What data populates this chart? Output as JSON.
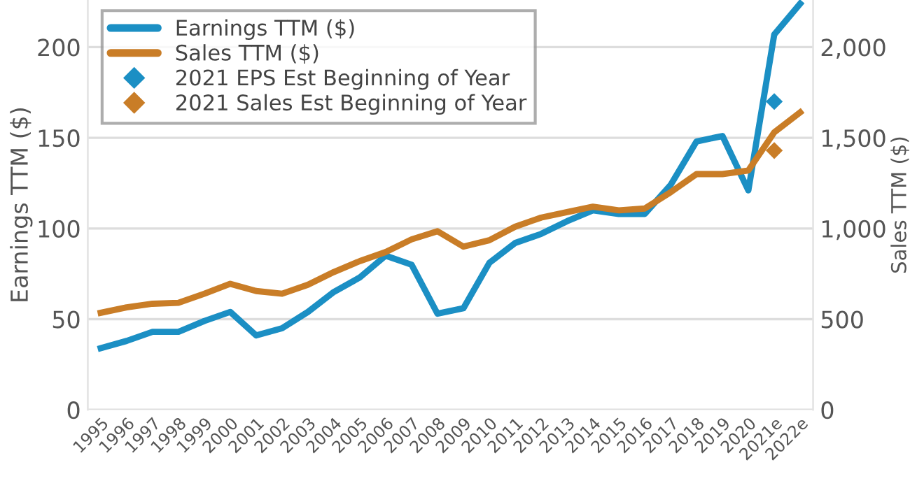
{
  "chart_data": {
    "type": "line",
    "ylabel": "Earnings TTM ($)",
    "y2label": "Sales TTM ($)",
    "categories": [
      "1995",
      "1996",
      "1997",
      "1998",
      "1999",
      "2000",
      "2001",
      "2002",
      "2003",
      "2004",
      "2005",
      "2006",
      "2007",
      "2008",
      "2009",
      "2010",
      "2011",
      "2012",
      "2013",
      "2014",
      "2015",
      "2016",
      "2017",
      "2018",
      "2019",
      "2020",
      "2021e",
      "2022e"
    ],
    "series": [
      {
        "name": "Earnings TTM ($)",
        "color": "#1b8fc4",
        "values": [
          34,
          38,
          43,
          43,
          49,
          54,
          41,
          45,
          54,
          65,
          73,
          85,
          80,
          53,
          56,
          81,
          92,
          97,
          104,
          110,
          108,
          108,
          124,
          148,
          151,
          121,
          207,
          224
        ]
      },
      {
        "name": "Sales TTM ($)",
        "axis": "y2",
        "color": "#c97d27",
        "values": [
          535,
          565,
          585,
          590,
          640,
          695,
          655,
          640,
          690,
          760,
          820,
          870,
          940,
          985,
          900,
          935,
          1010,
          1060,
          1090,
          1120,
          1100,
          1110,
          1200,
          1300,
          1300,
          1320,
          1530,
          1640
        ]
      },
      {
        "name": "2021 EPS Est Beginning of Year",
        "type": "scatter",
        "marker": "diamond",
        "color": "#1b8fc4",
        "values": [
          null,
          null,
          null,
          null,
          null,
          null,
          null,
          null,
          null,
          null,
          null,
          null,
          null,
          null,
          null,
          null,
          null,
          null,
          null,
          null,
          null,
          null,
          null,
          null,
          null,
          null,
          170,
          null
        ]
      },
      {
        "name": "2021 Sales Est Beginning of Year",
        "type": "scatter",
        "axis": "y2",
        "marker": "diamond",
        "color": "#c97d27",
        "values": [
          null,
          null,
          null,
          null,
          null,
          null,
          null,
          null,
          null,
          null,
          null,
          null,
          null,
          null,
          null,
          null,
          null,
          null,
          null,
          null,
          null,
          null,
          null,
          null,
          null,
          null,
          1430,
          null
        ]
      }
    ],
    "ylim": [
      0,
      226
    ],
    "yticks": [
      0,
      50,
      100,
      150,
      200
    ],
    "y2lim": [
      0,
      2260
    ],
    "y2ticks": [
      {
        "value": 0,
        "label": "0"
      },
      {
        "value": 500,
        "label": "500"
      },
      {
        "value": 1000,
        "label": "1,000"
      },
      {
        "value": 1500,
        "label": "1,500"
      },
      {
        "value": 2000,
        "label": "2,000"
      }
    ],
    "grid": "y",
    "legend": "top left"
  }
}
